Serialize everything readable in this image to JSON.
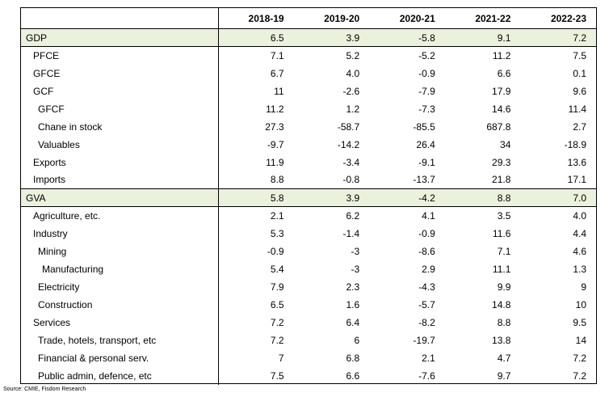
{
  "columns": [
    "",
    "2018-19",
    "2019-20",
    "2020-21",
    "2021-22",
    "2022-23"
  ],
  "rows": [
    {
      "label": "GDP",
      "level": 0,
      "highlight": true,
      "values": [
        "6.5",
        "3.9",
        "-5.8",
        "9.1",
        "7.2"
      ]
    },
    {
      "label": "PFCE",
      "level": 1,
      "highlight": false,
      "values": [
        "7.1",
        "5.2",
        "-5.2",
        "11.2",
        "7.5"
      ]
    },
    {
      "label": "GFCE",
      "level": 1,
      "highlight": false,
      "values": [
        "6.7",
        "4.0",
        "-0.9",
        "6.6",
        "0.1"
      ]
    },
    {
      "label": "GCF",
      "level": 1,
      "highlight": false,
      "values": [
        "11",
        "-2.6",
        "-7.9",
        "17.9",
        "9.6"
      ]
    },
    {
      "label": "GFCF",
      "level": 2,
      "highlight": false,
      "values": [
        "11.2",
        "1.2",
        "-7.3",
        "14.6",
        "11.4"
      ]
    },
    {
      "label": "Chane in stock",
      "level": 2,
      "highlight": false,
      "values": [
        "27.3",
        "-58.7",
        "-85.5",
        "687.8",
        "2.7"
      ]
    },
    {
      "label": "Valuables",
      "level": 2,
      "highlight": false,
      "values": [
        "-9.7",
        "-14.2",
        "26.4",
        "34",
        "-18.9"
      ]
    },
    {
      "label": "Exports",
      "level": 1,
      "highlight": false,
      "values": [
        "11.9",
        "-3.4",
        "-9.1",
        "29.3",
        "13.6"
      ]
    },
    {
      "label": "Imports",
      "level": 1,
      "highlight": false,
      "values": [
        "8.8",
        "-0.8",
        "-13.7",
        "21.8",
        "17.1"
      ]
    },
    {
      "label": "GVA",
      "level": 0,
      "highlight": true,
      "values": [
        "5.8",
        "3.9",
        "-4.2",
        "8.8",
        "7.0"
      ]
    },
    {
      "label": "Agriculture, etc.",
      "level": 1,
      "highlight": false,
      "values": [
        "2.1",
        "6.2",
        "4.1",
        "3.5",
        "4.0"
      ]
    },
    {
      "label": "Industry",
      "level": 1,
      "highlight": false,
      "values": [
        "5.3",
        "-1.4",
        "-0.9",
        "11.6",
        "4.4"
      ]
    },
    {
      "label": "Mining",
      "level": 2,
      "highlight": false,
      "values": [
        "-0.9",
        "-3",
        "-8.6",
        "7.1",
        "4.6"
      ]
    },
    {
      "label": "Manufacturing",
      "level": 3,
      "highlight": false,
      "values": [
        "5.4",
        "-3",
        "2.9",
        "11.1",
        "1.3"
      ]
    },
    {
      "label": "Electricity",
      "level": 2,
      "highlight": false,
      "values": [
        "7.9",
        "2.3",
        "-4.3",
        "9.9",
        "9"
      ]
    },
    {
      "label": "Construction",
      "level": 2,
      "highlight": false,
      "values": [
        "6.5",
        "1.6",
        "-5.7",
        "14.8",
        "10"
      ]
    },
    {
      "label": "Services",
      "level": 1,
      "highlight": false,
      "values": [
        "7.2",
        "6.4",
        "-8.2",
        "8.8",
        "9.5"
      ]
    },
    {
      "label": "Trade, hotels, transport, etc",
      "level": 2,
      "highlight": false,
      "values": [
        "7.2",
        "6",
        "-19.7",
        "13.8",
        "14"
      ]
    },
    {
      "label": "Financial & personal serv.",
      "level": 2,
      "highlight": false,
      "values": [
        "7",
        "6.8",
        "2.1",
        "4.7",
        "7.2"
      ]
    },
    {
      "label": "Public admin, defence, etc",
      "level": 2,
      "highlight": false,
      "values": [
        "7.5",
        "6.6",
        "-7.6",
        "9.7",
        "7.2"
      ]
    }
  ],
  "source": "Source: CMIE, Fisdom Research",
  "colors": {
    "highlight_bg": "#eaf1dd",
    "border": "#000000"
  }
}
